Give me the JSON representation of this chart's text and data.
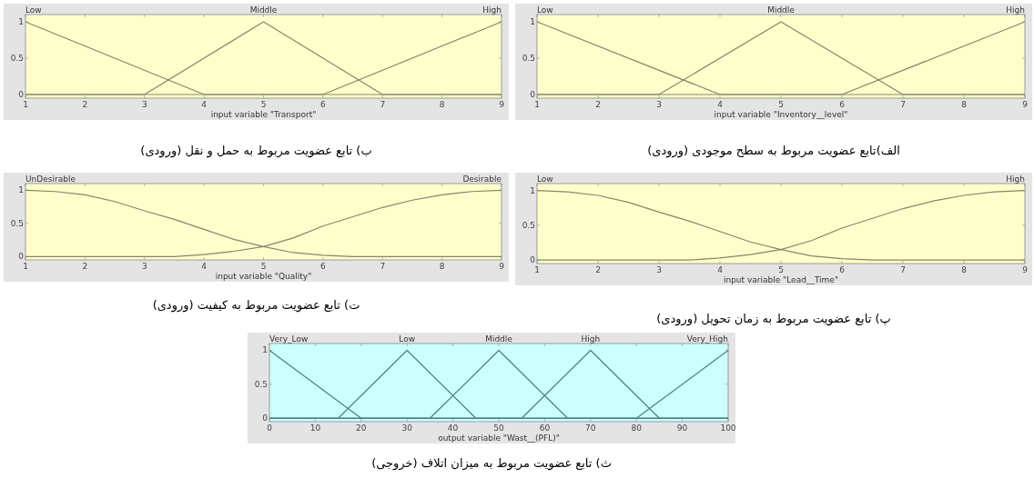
{
  "chart_data": [
    {
      "type": "line",
      "title": "الف)تابع عضویت مربوط به سطح موجودی (ورودی)",
      "xlabel": "input variable \"Inventory__level\"",
      "xlim": [
        1,
        9
      ],
      "ylim": [
        -0.05,
        1.1
      ],
      "xticks": [
        1,
        2,
        3,
        4,
        5,
        6,
        7,
        8,
        9
      ],
      "yticks": [
        0,
        0.5,
        1
      ],
      "series": [
        {
          "name": "Low",
          "color": "#85856a",
          "x": [
            1,
            4,
            9
          ],
          "values": [
            1,
            0,
            0
          ]
        },
        {
          "name": "Middle",
          "color": "#85856a",
          "x": [
            1,
            3,
            5,
            7,
            9
          ],
          "values": [
            0,
            0,
            1,
            0,
            0
          ]
        },
        {
          "name": "High",
          "color": "#85856a",
          "x": [
            1,
            6,
            9
          ],
          "values": [
            0,
            0,
            1
          ]
        }
      ]
    },
    {
      "type": "line",
      "title": "ب) تابع عضویت مربوط به حمل و نقل (ورودی)",
      "xlabel": "input variable \"Transport\"",
      "xlim": [
        1,
        9
      ],
      "ylim": [
        -0.05,
        1.1
      ],
      "xticks": [
        1,
        2,
        3,
        4,
        5,
        6,
        7,
        8,
        9
      ],
      "yticks": [
        0,
        0.5,
        1
      ],
      "series": [
        {
          "name": "Low",
          "color": "#85856a",
          "x": [
            1,
            4,
            9
          ],
          "values": [
            1,
            0,
            0
          ]
        },
        {
          "name": "Middle",
          "color": "#85856a",
          "x": [
            1,
            3,
            5,
            7,
            9
          ],
          "values": [
            0,
            0,
            1,
            0,
            0
          ]
        },
        {
          "name": "High",
          "color": "#85856a",
          "x": [
            1,
            6,
            9
          ],
          "values": [
            0,
            0,
            1
          ]
        }
      ]
    },
    {
      "type": "line",
      "title": "پ) تابع عضویت مربوط به زمان تحویل (ورودی)",
      "xlabel": "input variable \"Lead__Time\"",
      "xlim": [
        1,
        9
      ],
      "ylim": [
        -0.05,
        1.1
      ],
      "xticks": [
        1,
        2,
        3,
        4,
        5,
        6,
        7,
        8,
        9
      ],
      "yticks": [
        0,
        0.5,
        1
      ],
      "series": [
        {
          "name": "Low",
          "color": "#85856a",
          "x": [
            1,
            1.5,
            2,
            2.5,
            3,
            3.5,
            4,
            4.5,
            5,
            5.5,
            6,
            6.5,
            7,
            8,
            9
          ],
          "values": [
            1,
            0.98,
            0.93,
            0.83,
            0.69,
            0.56,
            0.41,
            0.26,
            0.15,
            0.06,
            0.02,
            0,
            0,
            0,
            0
          ]
        },
        {
          "name": "High",
          "color": "#85856a",
          "x": [
            1,
            2,
            3,
            3.5,
            4,
            4.5,
            5,
            5.5,
            6,
            6.5,
            7,
            7.5,
            8,
            8.5,
            9
          ],
          "values": [
            0,
            0,
            0,
            0,
            0.03,
            0.08,
            0.15,
            0.28,
            0.46,
            0.6,
            0.74,
            0.85,
            0.93,
            0.98,
            1
          ]
        }
      ]
    },
    {
      "type": "line",
      "title": "ت) تابع عضویت مربوط به کیفیت (ورودی)",
      "xlabel": "input variable \"Quality\"",
      "xlim": [
        1,
        9
      ],
      "ylim": [
        -0.05,
        1.1
      ],
      "xticks": [
        1,
        2,
        3,
        4,
        5,
        6,
        7,
        8,
        9
      ],
      "yticks": [
        0,
        0.5,
        1
      ],
      "series": [
        {
          "name": "UnDesirable",
          "color": "#85856a",
          "x": [
            1,
            1.5,
            2,
            2.5,
            3,
            3.5,
            4,
            4.5,
            5,
            5.5,
            6,
            6.5,
            7,
            8,
            9
          ],
          "values": [
            1,
            0.98,
            0.93,
            0.83,
            0.69,
            0.56,
            0.41,
            0.26,
            0.15,
            0.06,
            0.02,
            0,
            0,
            0,
            0
          ]
        },
        {
          "name": "Desirable",
          "color": "#85856a",
          "x": [
            1,
            2,
            3,
            3.5,
            4,
            4.5,
            5,
            5.5,
            6,
            6.5,
            7,
            7.5,
            8,
            8.5,
            9
          ],
          "values": [
            0,
            0,
            0,
            0,
            0.03,
            0.08,
            0.15,
            0.28,
            0.46,
            0.6,
            0.74,
            0.85,
            0.93,
            0.98,
            1
          ]
        }
      ]
    },
    {
      "type": "line",
      "title": "ث) تابع عضویت مربوط به میزان اتلاف (خروجی)",
      "xlabel": "output variable \"Wast__(PFL)\"",
      "xlim": [
        0,
        100
      ],
      "ylim": [
        -0.05,
        1.1
      ],
      "xticks": [
        0,
        10,
        20,
        30,
        40,
        50,
        60,
        70,
        80,
        90,
        100
      ],
      "yticks": [
        0,
        0.5,
        1
      ],
      "series": [
        {
          "name": "Very_Low",
          "color": "#4f7f7f",
          "x": [
            0,
            20,
            100
          ],
          "values": [
            1,
            0,
            0
          ]
        },
        {
          "name": "Low",
          "color": "#4f7f7f",
          "x": [
            0,
            15,
            30,
            45,
            100
          ],
          "values": [
            0,
            0,
            1,
            0,
            0
          ]
        },
        {
          "name": "Middle",
          "color": "#4f7f7f",
          "x": [
            0,
            35,
            50,
            65,
            100
          ],
          "values": [
            0,
            0,
            1,
            0,
            0
          ]
        },
        {
          "name": "High",
          "color": "#4f7f7f",
          "x": [
            0,
            55,
            70,
            85,
            100
          ],
          "values": [
            0,
            0,
            1,
            0,
            0
          ]
        },
        {
          "name": "Very_High",
          "color": "#4f7f7f",
          "x": [
            0,
            80,
            100
          ],
          "values": [
            0,
            0,
            1
          ]
        }
      ]
    }
  ]
}
